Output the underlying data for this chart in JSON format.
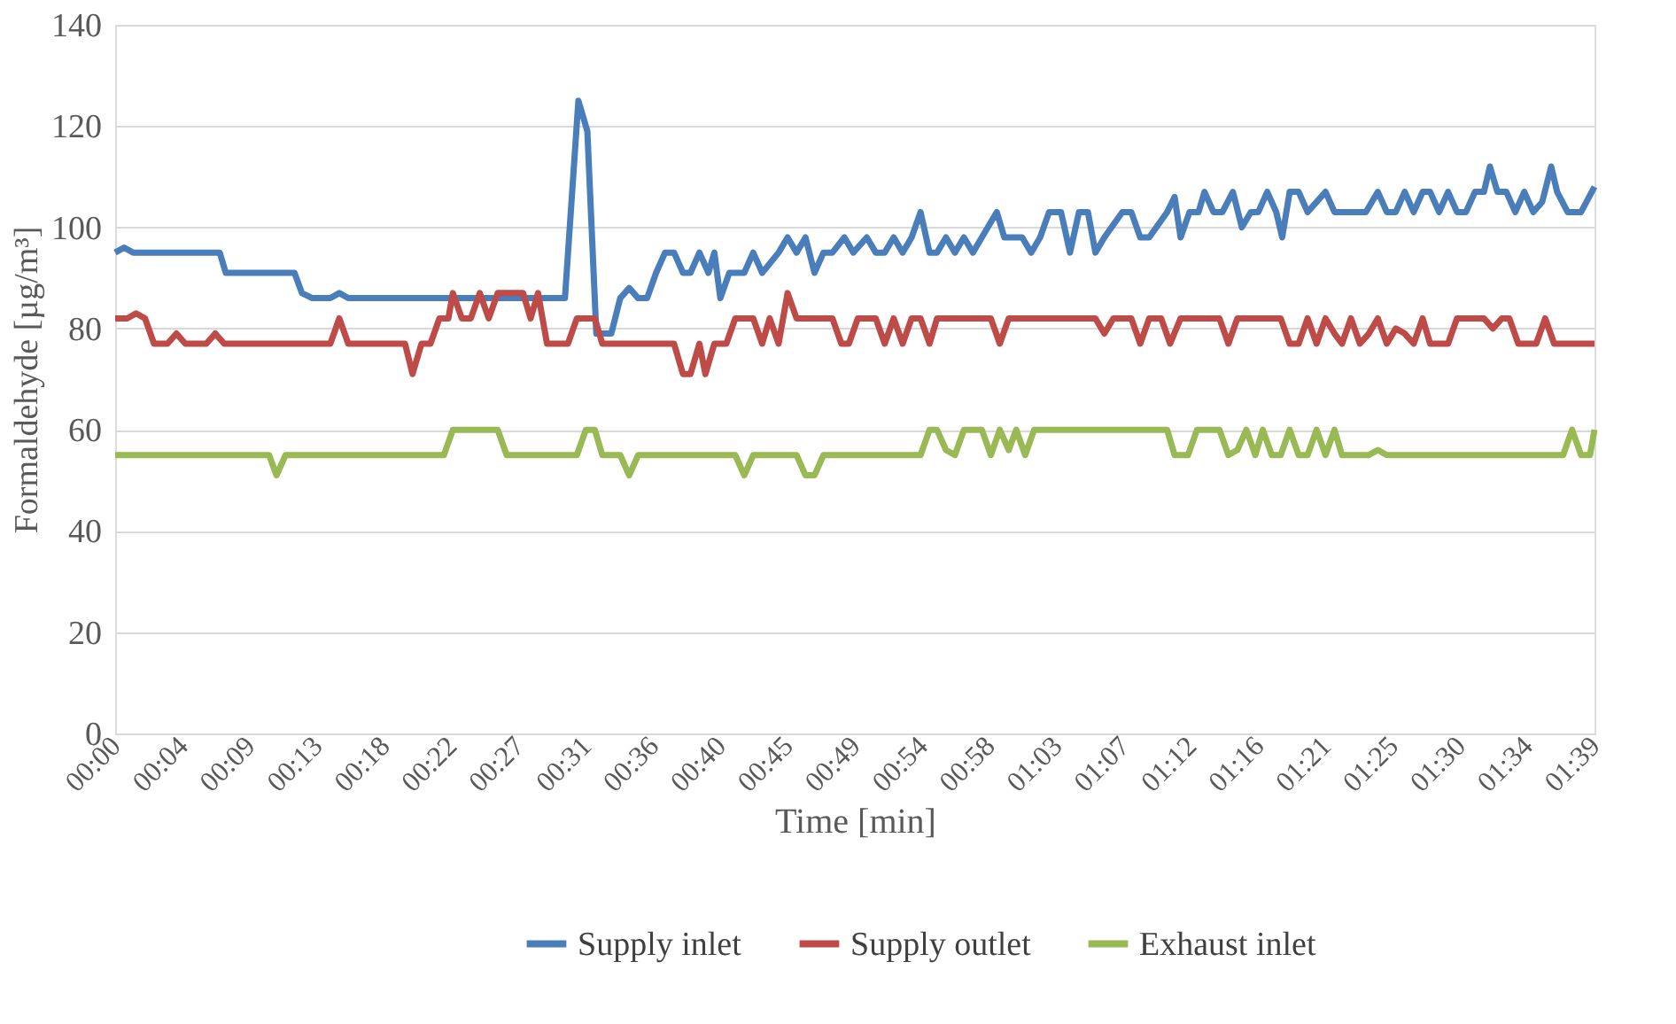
{
  "chart_data": {
    "type": "line",
    "xlabel": "Time [min]",
    "ylabel": "Formaldehyde [µg/m³]",
    "xlim": [
      0,
      99
    ],
    "ylim": [
      0,
      140
    ],
    "yticks": [
      0,
      20,
      40,
      60,
      80,
      100,
      120,
      140
    ],
    "xticks": [
      {
        "value": 0,
        "label": "00:00"
      },
      {
        "value": 4.5,
        "label": "00:04"
      },
      {
        "value": 9,
        "label": "00:09"
      },
      {
        "value": 13.5,
        "label": "00:13"
      },
      {
        "value": 18,
        "label": "00:18"
      },
      {
        "value": 22.5,
        "label": "00:22"
      },
      {
        "value": 27,
        "label": "00:27"
      },
      {
        "value": 31.5,
        "label": "00:31"
      },
      {
        "value": 36,
        "label": "00:36"
      },
      {
        "value": 40.5,
        "label": "00:40"
      },
      {
        "value": 45,
        "label": "00:45"
      },
      {
        "value": 49.5,
        "label": "00:49"
      },
      {
        "value": 54,
        "label": "00:54"
      },
      {
        "value": 58.5,
        "label": "00:58"
      },
      {
        "value": 63,
        "label": "01:03"
      },
      {
        "value": 67.5,
        "label": "01:07"
      },
      {
        "value": 72,
        "label": "01:12"
      },
      {
        "value": 76.5,
        "label": "01:16"
      },
      {
        "value": 81,
        "label": "01:21"
      },
      {
        "value": 85.5,
        "label": "01:25"
      },
      {
        "value": 90,
        "label": "01:30"
      },
      {
        "value": 94.5,
        "label": "01:34"
      },
      {
        "value": 99,
        "label": "01:39"
      }
    ],
    "grid": "y",
    "legend": "bottom",
    "line_style": "solid",
    "series": [
      {
        "name": "Supply inlet",
        "color": "#4a7ebb",
        "x": [
          0,
          0.6,
          1.2,
          7.0,
          7.4,
          12.0,
          12.5,
          13.2,
          14.4,
          15.0,
          15.6,
          29.1,
          30.1,
          31.0,
          31.6,
          32.2,
          33.2,
          33.8,
          34.4,
          35.0,
          35.6,
          36.2,
          36.8,
          37.4,
          38.0,
          38.5,
          39.1,
          39.7,
          40.1,
          40.5,
          41.1,
          42.1,
          42.7,
          43.3,
          44.4,
          45.0,
          45.6,
          46.2,
          46.8,
          47.4,
          48.0,
          48.8,
          49.4,
          50.3,
          50.9,
          51.5,
          52.1,
          52.7,
          53.3,
          53.9,
          54.5,
          55.0,
          55.6,
          56.2,
          56.8,
          57.4,
          58.0,
          59.0,
          59.5,
          60.7,
          61.3,
          61.9,
          62.5,
          63.3,
          63.9,
          64.5,
          65.1,
          65.6,
          66.2,
          67.4,
          68.0,
          68.6,
          69.2,
          70.4,
          70.9,
          71.3,
          71.9,
          72.5,
          72.9,
          73.5,
          74.1,
          74.8,
          75.4,
          76.0,
          76.5,
          77.1,
          77.7,
          78.1,
          78.6,
          79.2,
          79.8,
          81.0,
          81.6,
          83.7,
          84.5,
          85.1,
          85.7,
          86.3,
          86.9,
          87.5,
          88.0,
          88.6,
          89.2,
          89.8,
          90.4,
          91.0,
          91.6,
          92.0,
          92.5,
          93.1,
          93.7,
          94.3,
          94.9,
          95.5,
          96.1,
          96.5,
          97.2,
          98.1,
          99
        ],
        "values": [
          95,
          96,
          95,
          95,
          91,
          91,
          87,
          86,
          86,
          87,
          86,
          86,
          86,
          125,
          119,
          79,
          79,
          86,
          88,
          86,
          86,
          91,
          95,
          95,
          91,
          91,
          95,
          91,
          95,
          86,
          91,
          91,
          95,
          91,
          95,
          98,
          95,
          98,
          91,
          95,
          95,
          98,
          95,
          98,
          95,
          95,
          98,
          95,
          98,
          103,
          95,
          95,
          98,
          95,
          98,
          95,
          98,
          103,
          98,
          98,
          95,
          98,
          103,
          103,
          95,
          103,
          103,
          95,
          98,
          103,
          103,
          98,
          98,
          103,
          106,
          98,
          103,
          103,
          107,
          103,
          103,
          107,
          100,
          103,
          103,
          107,
          103,
          98,
          107,
          107,
          103,
          107,
          103,
          103,
          107,
          103,
          103,
          107,
          103,
          107,
          107,
          103,
          107,
          103,
          103,
          107,
          107,
          112,
          107,
          107,
          103,
          107,
          103,
          105,
          112,
          107,
          103,
          103,
          108
        ]
      },
      {
        "name": "Supply outlet",
        "color": "#be4b48",
        "x": [
          0,
          0.8,
          1.4,
          2.0,
          2.6,
          3.5,
          4.1,
          4.7,
          6.1,
          6.7,
          7.3,
          14.4,
          15.0,
          15.6,
          19.4,
          19.9,
          20.5,
          21.1,
          21.7,
          22.3,
          22.6,
          23.2,
          23.8,
          24.4,
          25.0,
          25.6,
          27.3,
          27.8,
          28.3,
          28.9,
          30.3,
          30.9,
          32.1,
          32.6,
          37.4,
          38.0,
          38.5,
          39.1,
          39.5,
          40.1,
          40.9,
          41.5,
          42.7,
          43.3,
          43.8,
          44.4,
          45.0,
          45.6,
          48.0,
          48.6,
          49.1,
          49.7,
          50.9,
          51.5,
          52.1,
          52.7,
          53.3,
          53.9,
          54.5,
          55.0,
          58.6,
          59.2,
          59.8,
          65.6,
          66.2,
          66.8,
          68.0,
          68.6,
          69.2,
          70.0,
          70.6,
          71.3,
          73.9,
          74.5,
          75.1,
          78.0,
          78.6,
          79.2,
          79.8,
          80.4,
          81.0,
          81.6,
          82.1,
          82.7,
          83.3,
          83.9,
          84.5,
          85.1,
          85.7,
          86.3,
          86.9,
          87.5,
          88.0,
          89.2,
          89.8,
          91.6,
          92.2,
          92.8,
          93.3,
          93.9,
          95.1,
          95.7,
          96.3,
          99
        ],
        "values": [
          82,
          82,
          83,
          82,
          77,
          77,
          79,
          77,
          77,
          79,
          77,
          77,
          82,
          77,
          77,
          71,
          77,
          77,
          82,
          82,
          87,
          82,
          82,
          87,
          82,
          87,
          87,
          82,
          87,
          77,
          77,
          82,
          82,
          77,
          77,
          71,
          71,
          77,
          71,
          77,
          77,
          82,
          82,
          77,
          82,
          77,
          87,
          82,
          82,
          77,
          77,
          82,
          82,
          77,
          82,
          77,
          82,
          82,
          77,
          82,
          82,
          77,
          82,
          82,
          79,
          82,
          82,
          77,
          82,
          82,
          77,
          82,
          82,
          77,
          82,
          82,
          77,
          77,
          82,
          77,
          82,
          79,
          77,
          82,
          77,
          79,
          82,
          77,
          80,
          79,
          77,
          82,
          77,
          77,
          82,
          82,
          80,
          82,
          82,
          77,
          77,
          82,
          77,
          77
        ]
      },
      {
        "name": "Exhaust inlet",
        "color": "#98b954",
        "x": [
          0,
          10.3,
          10.8,
          11.4,
          22.0,
          22.6,
          25.6,
          26.2,
          30.9,
          31.5,
          32.1,
          32.6,
          33.8,
          34.4,
          35.0,
          41.5,
          42.1,
          42.7,
          45.6,
          46.2,
          46.8,
          47.4,
          53.9,
          54.5,
          55.0,
          55.6,
          56.2,
          56.8,
          58.0,
          58.6,
          59.2,
          59.8,
          60.3,
          60.9,
          61.5,
          70.4,
          70.9,
          71.8,
          72.4,
          73.9,
          74.5,
          75.1,
          75.7,
          76.3,
          76.8,
          77.4,
          78.0,
          78.6,
          79.2,
          79.8,
          80.4,
          81.0,
          81.6,
          82.1,
          83.9,
          84.5,
          85.1,
          96.9,
          97.5,
          98.1,
          98.7,
          99
        ],
        "values": [
          55,
          55,
          51,
          55,
          55,
          60,
          60,
          55,
          55,
          60,
          60,
          55,
          55,
          51,
          55,
          55,
          51,
          55,
          55,
          51,
          51,
          55,
          55,
          60,
          60,
          56,
          55,
          60,
          60,
          55,
          60,
          56,
          60,
          55,
          60,
          60,
          55,
          55,
          60,
          60,
          55,
          56,
          60,
          55,
          60,
          55,
          55,
          60,
          55,
          55,
          60,
          55,
          60,
          55,
          55,
          56,
          55,
          55,
          60,
          55,
          55,
          60
        ]
      }
    ]
  }
}
